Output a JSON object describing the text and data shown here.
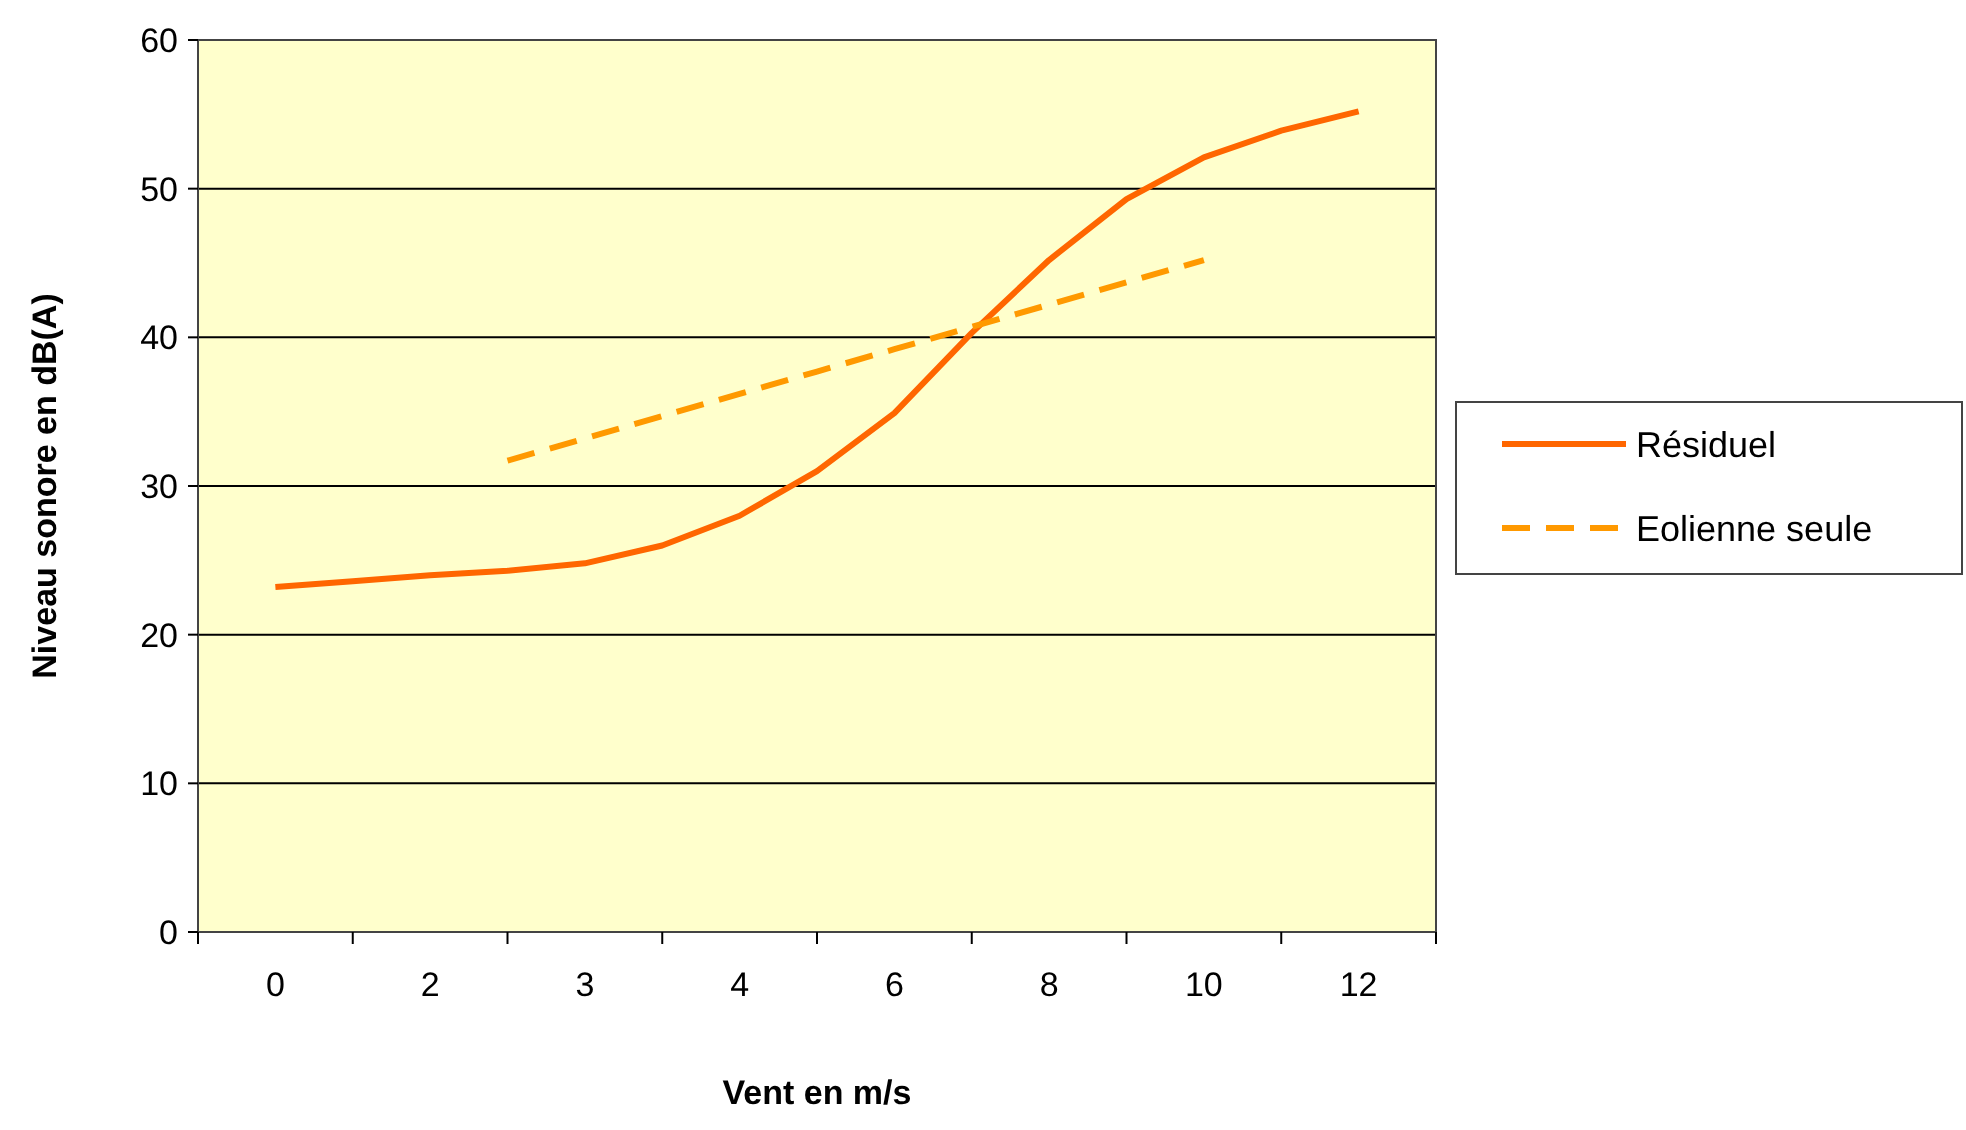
{
  "chart_data": {
    "type": "line",
    "xlabel": "Vent en m/s",
    "ylabel": "Niveau sonore en dB(A)",
    "categories": [
      "0",
      null,
      "2",
      null,
      "3",
      null,
      "4",
      null,
      "6",
      null,
      "8",
      null,
      "10",
      null,
      "12"
    ],
    "series": [
      {
        "name": "Résiduel",
        "color": "#ff6600",
        "line_style": "solid",
        "values": [
          23.2,
          23.6,
          24.0,
          24.3,
          24.8,
          26.0,
          28.0,
          31.0,
          34.9,
          40.3,
          45.2,
          49.3,
          52.1,
          53.9,
          55.2
        ]
      },
      {
        "name": "Eolienne seule",
        "color": "#ff9900",
        "line_style": "dashed",
        "values": [
          null,
          null,
          null,
          31.7,
          33.2,
          34.7,
          36.2,
          37.7,
          39.2,
          40.7,
          42.2,
          43.7,
          45.2,
          null,
          null
        ]
      }
    ],
    "ylim": [
      0,
      60
    ],
    "yticks": [
      0,
      10,
      20,
      30,
      40,
      50,
      60
    ],
    "grid": "y",
    "legend": "right"
  }
}
